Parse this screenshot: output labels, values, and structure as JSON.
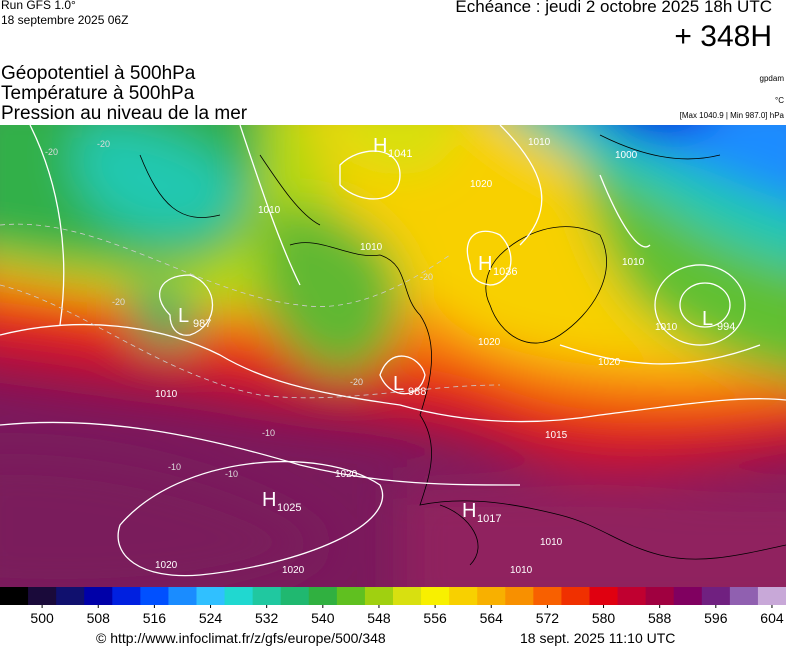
{
  "header": {
    "run": "Run GFS 1.0°",
    "run_date": "18 septembre 2025 06Z",
    "valid": "Echéance : jeudi 2 octobre 2025 18h UTC",
    "lead": "+ 348H"
  },
  "layers": [
    "Géopotentiel à 500hPa",
    "Température à 500hPa",
    "Pression au niveau de la mer"
  ],
  "units": [
    "gpdam",
    "°C",
    "[Max 1040.9 | Min 987.0] hPa"
  ],
  "centers": [
    {
      "type": "H",
      "value": 1041
    },
    {
      "type": "L",
      "value": 987
    },
    {
      "type": "H",
      "value": 1036
    },
    {
      "type": "L",
      "value": 994
    },
    {
      "type": "L",
      "value": 988
    },
    {
      "type": "H",
      "value": 1025
    },
    {
      "type": "H",
      "value": 1017
    }
  ],
  "isobar_labels": [
    1010,
    1010,
    1020,
    1000,
    1010,
    1010,
    1020,
    1010,
    1010,
    1020,
    1020,
    1020,
    1010,
    1010,
    1020,
    1015
  ],
  "temperature_labels": [
    -20,
    -20,
    -20,
    -20,
    -20,
    -10,
    -10,
    -10
  ],
  "colorbar": {
    "lim": [
      494,
      606
    ],
    "ticks": [
      500,
      508,
      516,
      524,
      532,
      540,
      548,
      556,
      564,
      572,
      580,
      588,
      596,
      604
    ],
    "colors": [
      "#000000",
      "#1a0a3a",
      "#10106e",
      "#0000a8",
      "#0020e0",
      "#0050ff",
      "#1a8cff",
      "#30c0ff",
      "#20d8d0",
      "#20c8a0",
      "#20b870",
      "#30b040",
      "#60c020",
      "#a0d010",
      "#d8e010",
      "#f8f000",
      "#f8d000",
      "#f8b000",
      "#f89000",
      "#f86000",
      "#f03000",
      "#e00010",
      "#c00030",
      "#a00040",
      "#800060",
      "#702080",
      "#9060b0",
      "#c8a8d8"
    ]
  },
  "footer": {
    "source": "© http://www.infoclimat.fr/z/gfs/europe/500/348",
    "generated": "18 sept. 2025 11:10 UTC"
  }
}
